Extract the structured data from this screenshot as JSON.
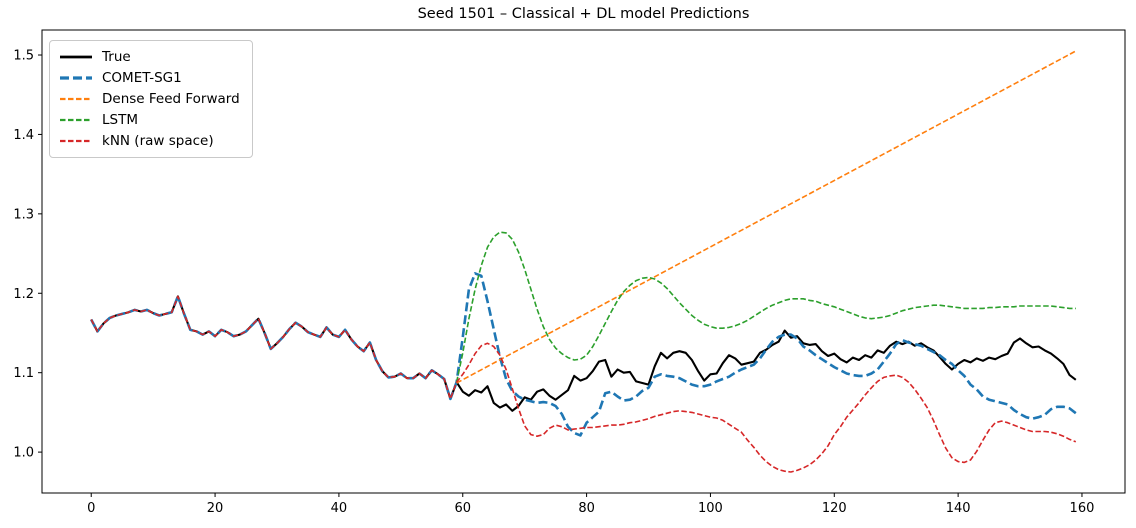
{
  "chart_data": {
    "type": "line",
    "title": "Seed 1501 – Classical + DL model Predictions",
    "xlabel": "",
    "ylabel": "",
    "grid": false,
    "legend_position": "upper-left",
    "xlim": [
      -7.95,
      166.95
    ],
    "ylim": [
      0.9485,
      1.5315
    ],
    "x_ticks": [
      0,
      20,
      40,
      60,
      80,
      100,
      120,
      140,
      160
    ],
    "y_ticks": [
      1.0,
      1.1,
      1.2,
      1.3,
      1.4,
      1.5
    ],
    "y_tick_labels": [
      "1.0",
      "1.1",
      "1.2",
      "1.3",
      "1.4",
      "1.5"
    ],
    "forecast_start_x": 59,
    "history_x0": 0,
    "history_y": [
      1.167,
      1.152,
      1.162,
      1.169,
      1.172,
      1.174,
      1.176,
      1.179,
      1.177,
      1.179,
      1.175,
      1.172,
      1.174,
      1.176,
      1.196,
      1.174,
      1.154,
      1.152,
      1.148,
      1.152,
      1.146,
      1.154,
      1.151,
      1.146,
      1.148,
      1.152,
      1.16,
      1.168,
      1.15,
      1.13,
      1.137,
      1.145,
      1.155,
      1.163,
      1.158,
      1.151,
      1.148,
      1.145,
      1.157,
      1.148,
      1.145,
      1.154,
      1.142,
      1.133,
      1.127,
      1.138,
      1.116,
      1.102,
      1.094,
      1.095,
      1.099,
      1.093,
      1.093,
      1.099,
      1.093,
      1.103,
      1.098,
      1.092,
      1.067
    ],
    "series": [
      {
        "name": "True",
        "color": "#000000",
        "dash": null,
        "width": 2.1,
        "uses_history": true,
        "x0": 59,
        "y": [
          1.088,
          1.076,
          1.071,
          1.078,
          1.075,
          1.083,
          1.062,
          1.056,
          1.06,
          1.052,
          1.058,
          1.069,
          1.066,
          1.076,
          1.079,
          1.071,
          1.066,
          1.072,
          1.078,
          1.096,
          1.09,
          1.093,
          1.102,
          1.114,
          1.116,
          1.095,
          1.104,
          1.1,
          1.101,
          1.089,
          1.087,
          1.085,
          1.108,
          1.125,
          1.118,
          1.125,
          1.127,
          1.125,
          1.116,
          1.102,
          1.09,
          1.098,
          1.099,
          1.112,
          1.122,
          1.118,
          1.11,
          1.112,
          1.114,
          1.125,
          1.129,
          1.135,
          1.139,
          1.153,
          1.144,
          1.146,
          1.137,
          1.135,
          1.136,
          1.127,
          1.121,
          1.124,
          1.117,
          1.113,
          1.119,
          1.116,
          1.122,
          1.119,
          1.128,
          1.125,
          1.134,
          1.139,
          1.136,
          1.139,
          1.134,
          1.137,
          1.132,
          1.128,
          1.12,
          1.111,
          1.104,
          1.111,
          1.116,
          1.113,
          1.118,
          1.115,
          1.119,
          1.117,
          1.121,
          1.124,
          1.138,
          1.143,
          1.137,
          1.132,
          1.133,
          1.128,
          1.124,
          1.118,
          1.111,
          1.097,
          1.091
        ]
      },
      {
        "name": "COMET-SG1",
        "color": "#1f77b4",
        "dash": [
          9,
          4
        ],
        "width": 2.6,
        "uses_history": true,
        "x0": 59,
        "y": [
          1.088,
          1.145,
          1.205,
          1.225,
          1.222,
          1.19,
          1.155,
          1.12,
          1.092,
          1.077,
          1.07,
          1.066,
          1.064,
          1.062,
          1.063,
          1.062,
          1.058,
          1.048,
          1.032,
          1.024,
          1.021,
          1.037,
          1.044,
          1.051,
          1.074,
          1.076,
          1.07,
          1.065,
          1.066,
          1.07,
          1.077,
          1.081,
          1.095,
          1.098,
          1.096,
          1.095,
          1.093,
          1.089,
          1.085,
          1.083,
          1.083,
          1.085,
          1.089,
          1.092,
          1.095,
          1.1,
          1.104,
          1.107,
          1.11,
          1.118,
          1.129,
          1.139,
          1.145,
          1.148,
          1.148,
          1.143,
          1.133,
          1.128,
          1.122,
          1.117,
          1.112,
          1.107,
          1.103,
          1.099,
          1.097,
          1.096,
          1.096,
          1.099,
          1.104,
          1.114,
          1.124,
          1.136,
          1.141,
          1.138,
          1.136,
          1.134,
          1.13,
          1.126,
          1.122,
          1.116,
          1.111,
          1.103,
          1.096,
          1.085,
          1.079,
          1.07,
          1.066,
          1.064,
          1.062,
          1.06,
          1.053,
          1.048,
          1.044,
          1.042,
          1.044,
          1.047,
          1.054,
          1.057,
          1.057,
          1.055,
          1.049
        ]
      },
      {
        "name": "Dense Feed Forward",
        "color": "#ff7f0e",
        "dash": [
          5.5,
          2.5
        ],
        "width": 1.6,
        "uses_history": false,
        "x_points": [
          59,
          159
        ],
        "y": [
          1.087,
          1.505
        ]
      },
      {
        "name": "LSTM",
        "color": "#2ca02c",
        "dash": [
          5.5,
          2.5
        ],
        "width": 1.6,
        "uses_history": false,
        "x0": 59,
        "y": [
          1.088,
          1.125,
          1.168,
          1.205,
          1.235,
          1.258,
          1.271,
          1.277,
          1.276,
          1.268,
          1.252,
          1.23,
          1.205,
          1.18,
          1.158,
          1.142,
          1.131,
          1.124,
          1.119,
          1.116,
          1.117,
          1.122,
          1.133,
          1.147,
          1.162,
          1.177,
          1.191,
          1.202,
          1.21,
          1.216,
          1.219,
          1.22,
          1.218,
          1.213,
          1.206,
          1.197,
          1.188,
          1.18,
          1.172,
          1.166,
          1.161,
          1.158,
          1.156,
          1.156,
          1.157,
          1.159,
          1.162,
          1.166,
          1.171,
          1.176,
          1.181,
          1.185,
          1.188,
          1.191,
          1.193,
          1.193,
          1.193,
          1.191,
          1.19,
          1.187,
          1.185,
          1.183,
          1.18,
          1.177,
          1.174,
          1.171,
          1.169,
          1.168,
          1.169,
          1.17,
          1.172,
          1.175,
          1.178,
          1.18,
          1.182,
          1.183,
          1.184,
          1.185,
          1.185,
          1.184,
          1.183,
          1.182,
          1.181,
          1.181,
          1.181,
          1.181,
          1.182,
          1.182,
          1.183,
          1.183,
          1.183,
          1.184,
          1.184,
          1.184,
          1.184,
          1.184,
          1.184,
          1.183,
          1.182,
          1.181,
          1.181
        ]
      },
      {
        "name": "kNN (raw space)",
        "color": "#d62728",
        "dash": [
          5.5,
          2.5
        ],
        "width": 1.6,
        "uses_history": true,
        "x0": 59,
        "y": [
          1.088,
          1.098,
          1.11,
          1.124,
          1.134,
          1.137,
          1.133,
          1.122,
          1.104,
          1.08,
          1.055,
          1.033,
          1.022,
          1.02,
          1.022,
          1.03,
          1.034,
          1.032,
          1.028,
          1.029,
          1.03,
          1.031,
          1.031,
          1.032,
          1.033,
          1.034,
          1.034,
          1.035,
          1.037,
          1.038,
          1.04,
          1.042,
          1.045,
          1.047,
          1.049,
          1.051,
          1.052,
          1.051,
          1.05,
          1.048,
          1.046,
          1.044,
          1.043,
          1.04,
          1.035,
          1.03,
          1.025,
          1.015,
          1.006,
          0.996,
          0.988,
          0.982,
          0.978,
          0.976,
          0.975,
          0.977,
          0.98,
          0.984,
          0.99,
          0.998,
          1.008,
          1.022,
          1.032,
          1.044,
          1.053,
          1.062,
          1.072,
          1.081,
          1.089,
          1.094,
          1.096,
          1.097,
          1.094,
          1.088,
          1.079,
          1.068,
          1.056,
          1.04,
          1.022,
          1.005,
          0.993,
          0.988,
          0.987,
          0.99,
          1.001,
          1.015,
          1.028,
          1.037,
          1.039,
          1.037,
          1.034,
          1.031,
          1.028,
          1.026,
          1.026,
          1.026,
          1.025,
          1.023,
          1.02,
          1.016,
          1.013
        ]
      }
    ]
  }
}
